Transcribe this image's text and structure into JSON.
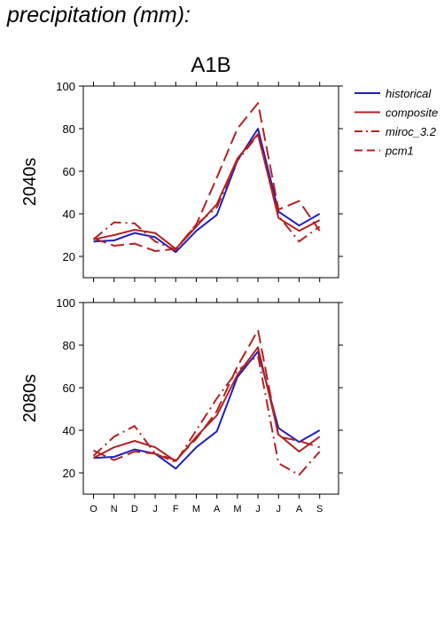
{
  "page": {
    "heading": "precipitation (mm):",
    "scenario": "A1B"
  },
  "legend": [
    {
      "label": "historical",
      "color": "#1f1fbf",
      "dash": "solid"
    },
    {
      "label": "composite",
      "color": "#b22222",
      "dash": "solid"
    },
    {
      "label": "miroc_3.2",
      "color": "#b22222",
      "dash": "dashdot"
    },
    {
      "label": "pcm1",
      "color": "#b22222",
      "dash": "dashed"
    }
  ],
  "chart_data": [
    {
      "type": "line",
      "title": "A1B",
      "ylabel": "2040s",
      "xlabel": "",
      "categories": [
        "O",
        "N",
        "D",
        "J",
        "F",
        "M",
        "A",
        "M",
        "J",
        "J",
        "A",
        "S"
      ],
      "ylim": [
        10,
        100
      ],
      "yticks": [
        20,
        40,
        60,
        80,
        100
      ],
      "grid": false,
      "legend_position": "right",
      "series": [
        {
          "name": "historical",
          "values": [
            27,
            27.5,
            31,
            29,
            22,
            32,
            39.5,
            65,
            80,
            41,
            34.5,
            40
          ]
        },
        {
          "name": "composite",
          "values": [
            28,
            30,
            32.5,
            31,
            23.5,
            34,
            44.5,
            66,
            77.5,
            38,
            32,
            37
          ]
        },
        {
          "name": "miroc_3.2",
          "values": [
            28,
            36,
            35.5,
            27,
            23,
            35,
            43,
            65,
            77,
            39,
            27,
            34
          ]
        },
        {
          "name": "pcm1",
          "values": [
            28.5,
            25,
            26,
            22.5,
            23.5,
            35,
            57,
            80,
            92,
            42,
            46,
            32
          ]
        }
      ]
    },
    {
      "type": "line",
      "title": "",
      "ylabel": "2080s",
      "xlabel": "",
      "categories": [
        "O",
        "N",
        "D",
        "J",
        "F",
        "M",
        "A",
        "M",
        "J",
        "J",
        "A",
        "S"
      ],
      "ylim": [
        10,
        100
      ],
      "yticks": [
        20,
        40,
        60,
        80,
        100
      ],
      "grid": false,
      "legend_position": "none",
      "series": [
        {
          "name": "historical",
          "values": [
            27,
            27.5,
            31,
            29,
            22,
            32,
            39.5,
            65,
            77,
            41,
            34.5,
            40
          ]
        },
        {
          "name": "composite",
          "values": [
            27,
            32,
            35,
            32,
            25.5,
            37,
            47,
            66,
            79,
            38,
            30,
            37
          ]
        },
        {
          "name": "miroc_3.2",
          "values": [
            28,
            37,
            42,
            29,
            25,
            40,
            55,
            68,
            75,
            24.5,
            19,
            30
          ]
        },
        {
          "name": "pcm1",
          "values": [
            30.5,
            26,
            30,
            29,
            26,
            36,
            49,
            70,
            87,
            37,
            35,
            32
          ]
        }
      ]
    }
  ]
}
